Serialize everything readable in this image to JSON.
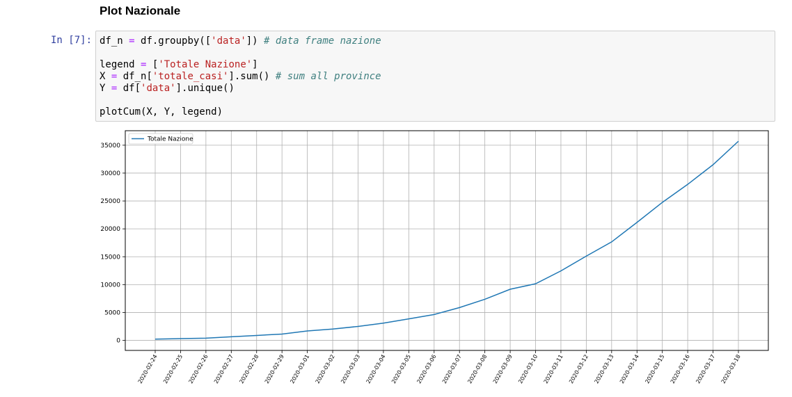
{
  "heading": "Plot Nazionale",
  "cell": {
    "prompt": "In [7]:",
    "lines": [
      [
        "df_n ",
        {
          "op": "="
        },
        " df.groupby([",
        {
          "str": "'data'"
        },
        "]) ",
        {
          "cm": "# data frame nazione"
        }
      ],
      [],
      [
        "legend ",
        {
          "op": "="
        },
        " [",
        {
          "str": "'Totale Nazione'"
        },
        "]"
      ],
      [
        "X ",
        {
          "op": "="
        },
        " df_n[",
        {
          "str": "'totale_casi'"
        },
        "].sum() ",
        {
          "cm": "# sum all province"
        }
      ],
      [
        "Y ",
        {
          "op": "="
        },
        " df[",
        {
          "str": "'data'"
        },
        "].unique()"
      ],
      [],
      [
        "plotCum(X, Y, legend)"
      ]
    ]
  },
  "chart_data": {
    "type": "line",
    "title": "",
    "xlabel": "",
    "ylabel": "",
    "ylim": [
      -1800,
      37600
    ],
    "yticks": [
      0,
      5000,
      10000,
      15000,
      20000,
      25000,
      30000,
      35000
    ],
    "grid": true,
    "legend_position": "top-left",
    "line_color": "#1f77b4",
    "categories": [
      "2020-02-24",
      "2020-02-25",
      "2020-02-26",
      "2020-02-27",
      "2020-02-28",
      "2020-02-29",
      "2020-03-01",
      "2020-03-02",
      "2020-03-03",
      "2020-03-04",
      "2020-03-05",
      "2020-03-06",
      "2020-03-07",
      "2020-03-08",
      "2020-03-09",
      "2020-03-10",
      "2020-03-11",
      "2020-03-12",
      "2020-03-13",
      "2020-03-14",
      "2020-03-15",
      "2020-03-16",
      "2020-03-17",
      "2020-03-18"
    ],
    "series": [
      {
        "name": "Totale Nazione",
        "values": [
          229,
          322,
          400,
          650,
          888,
          1128,
          1694,
          2036,
          2502,
          3089,
          3858,
          4636,
          5883,
          7375,
          9172,
          10149,
          12462,
          15113,
          17660,
          21157,
          24747,
          27980,
          31506,
          35713
        ]
      }
    ]
  }
}
